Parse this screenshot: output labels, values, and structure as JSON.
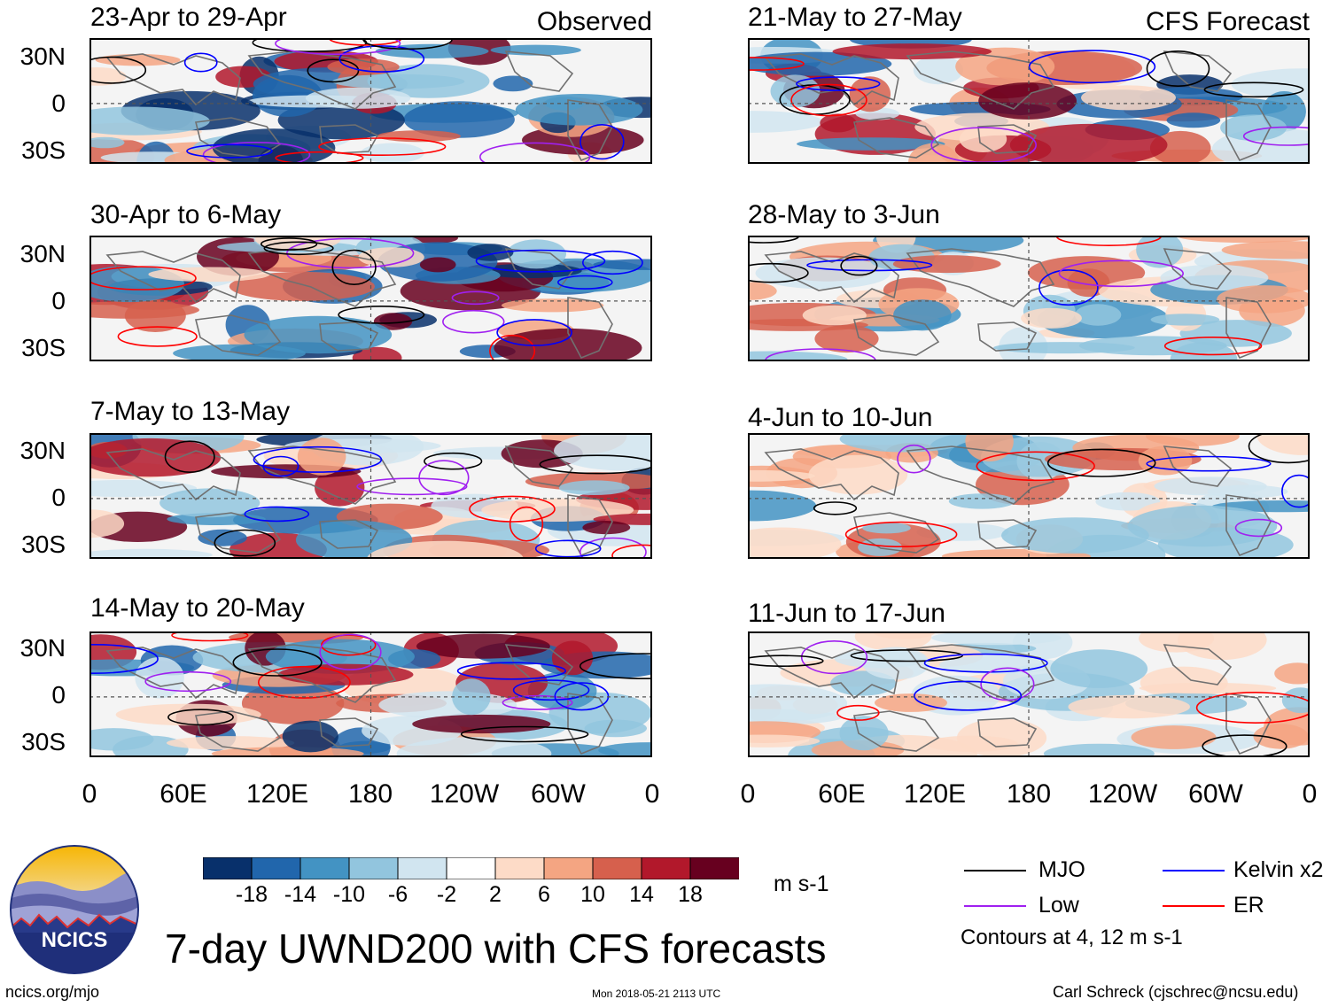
{
  "columns": {
    "left": {
      "header": "Observed"
    },
    "right": {
      "header": "CFS Forecast"
    }
  },
  "panels_left": [
    {
      "title": "23-Apr to 29-Apr"
    },
    {
      "title": "30-Apr to 6-May"
    },
    {
      "title": "7-May to 13-May"
    },
    {
      "title": "14-May to 20-May"
    }
  ],
  "panels_right": [
    {
      "title": "21-May to 27-May"
    },
    {
      "title": "28-May to 3-Jun"
    },
    {
      "title": "4-Jun to 10-Jun"
    },
    {
      "title": "11-Jun to 17-Jun"
    }
  ],
  "lat_labels": [
    "30N",
    "0",
    "30S"
  ],
  "lon_labels": [
    "0",
    "60E",
    "120E",
    "180",
    "120W",
    "60W",
    "0"
  ],
  "colorbar": {
    "ticks": [
      "-18",
      "-14",
      "-10",
      "-6",
      "-2",
      "2",
      "6",
      "10",
      "14",
      "18"
    ],
    "colors": [
      "#08306b",
      "#2166ac",
      "#4393c3",
      "#92c5de",
      "#d1e5f0",
      "#ffffff",
      "#fddbc7",
      "#f4a582",
      "#d6604d",
      "#b2182b",
      "#67001f"
    ],
    "units": "m s-1"
  },
  "title": "7-day UWND200 with CFS forecasts",
  "logo_text": "NCICS",
  "legend": {
    "items": [
      {
        "label": "MJO",
        "color": "#000000"
      },
      {
        "label": "Kelvin x2",
        "color": "#0000ff"
      },
      {
        "label": "Low",
        "color": "#a020f0"
      },
      {
        "label": "ER",
        "color": "#ff0000"
      }
    ],
    "note": "Contours at 4, 12 m s-1"
  },
  "footer": {
    "url": "ncics.org/mjo",
    "timestamp": "Mon 2018-05-21 2113 UTC",
    "credit": "Carl Schreck (cjschrec@ncsu.edu)"
  }
}
